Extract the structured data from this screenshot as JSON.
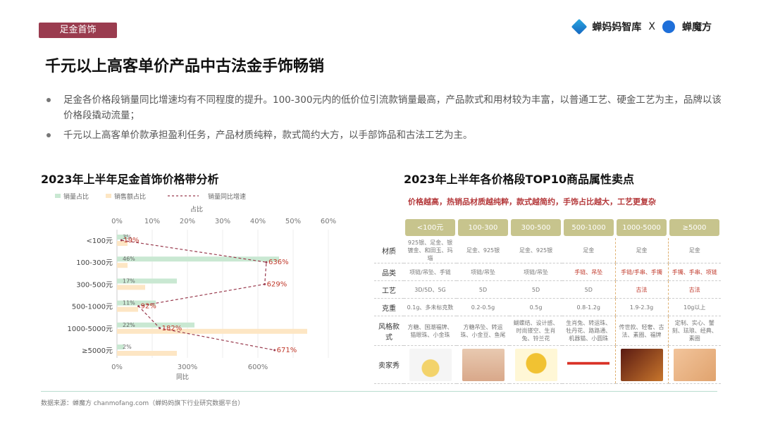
{
  "header": {
    "tag": "足金首饰",
    "brand1": "蝉妈妈智库",
    "brand_sep": "X",
    "brand2": "蝉魔方",
    "title": "千元以上高客单价产品中古法金手饰畅销",
    "bullet1": "足金各价格段销量同比增速均有不同程度的提升。100-300元内的低价位引流款销量最高，产品款式和用材较为丰富，以普通工艺、硬金工艺为主，品牌以该价格段撬动流量；",
    "bullet2": "千元以上高客单价款承担盈利任务，产品材质纯粹，款式简约大方，以手部饰品和古法工艺为主。"
  },
  "colors": {
    "accent": "#9a3c4f",
    "volume": "#c9e8d2",
    "sales": "#fde6c4",
    "growth": "#9a3c4f",
    "growth_label": "#c0392b",
    "header_cell": "#c7c48d"
  },
  "chart_data": {
    "type": "bar",
    "title": "2023年上半年足金首饰价格带分析",
    "categories": [
      "<100元",
      "100-300元",
      "300-500元",
      "500-1000元",
      "1000-5000元",
      "≥5000元"
    ],
    "series": [
      {
        "name": "销量占比",
        "values": [
          3,
          46,
          17,
          11,
          22,
          2
        ],
        "labels": [
          "3%",
          "46%",
          "17%",
          "11%",
          "22%",
          "2%"
        ]
      },
      {
        "name": "销售额占比",
        "values": [
          3,
          3,
          8,
          6,
          54,
          17
        ]
      },
      {
        "name": "销量同比增速",
        "values": [
          19,
          636,
          629,
          92,
          182,
          671
        ],
        "labels": [
          "19%",
          "636%",
          "629%",
          "92%",
          "182%",
          "671%"
        ]
      }
    ],
    "top_axis": {
      "label": "占比",
      "ticks": [
        "0%",
        "10%",
        "20%",
        "30%",
        "40%",
        "50%",
        "60%"
      ],
      "range": [
        0,
        60
      ]
    },
    "bottom_axis": {
      "label": "同比",
      "ticks": [
        "0%",
        "300%",
        "600%"
      ],
      "range": [
        0,
        900
      ]
    },
    "legend_position": "top"
  },
  "table": {
    "title": "2023年上半年各价格段TOP10商品属性卖点",
    "subtitle": "价格越高，热销品材质越纯粹，款式越简约，手饰占比越大，工艺更复杂",
    "headers": [
      "<100元",
      "100-300",
      "300-500",
      "500-1000",
      "1000-5000",
      "≥5000"
    ],
    "rows": [
      {
        "label": "材质",
        "cells": [
          "925银、足金、银镀金、和田玉、玛瑙",
          "足金、925银",
          "足金、925银",
          "足金",
          "足金",
          "足金"
        ],
        "red": []
      },
      {
        "label": "品类",
        "cells": [
          "项链/吊坠、手链",
          "项链/吊坠",
          "项链/吊坠",
          "手链、吊坠",
          "手链/手串、手镯",
          "手镯、手串、项链"
        ],
        "red": [
          3,
          4,
          5
        ]
      },
      {
        "label": "工艺",
        "cells": [
          "3D/5D、5G",
          "5D",
          "5D",
          "5D",
          "古法",
          "古法"
        ],
        "red": [
          4,
          5
        ]
      },
      {
        "label": "克重",
        "cells": [
          "0.1g、多未标克数",
          "0.2-0.5g",
          "0.5g",
          "0.8-1.2g",
          "1.9-2.3g",
          "10g以上"
        ],
        "red": []
      },
      {
        "label": "风格款式",
        "cells": [
          "方糖、国潮福牌、猫眼珠、小金珠",
          "方糖吊坠、转运珠、小金豆、鱼尾",
          "蝴蝶结、设计感、时尚镂空、生肖兔、铃兰花",
          "生肖兔、转运珠、牡丹花、路路通、机器猫、小圆珠",
          "传世款、轻奢、古法、素圈、福牌",
          "定制、实心、蟹刻、珐琅、经典、素圈"
        ],
        "red": []
      }
    ],
    "show_label": "卖家秀"
  },
  "footer": {
    "source": "数据来源：蝉魔方 chanmofang.com（蝉妈妈旗下行业研究数据平台）"
  }
}
